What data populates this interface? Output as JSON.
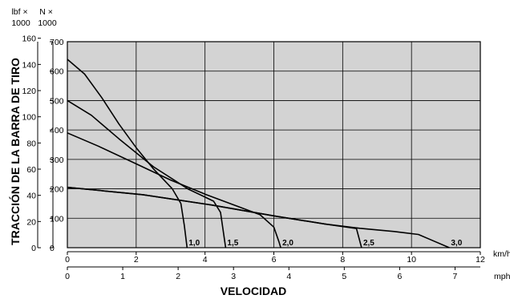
{
  "chart_data": {
    "type": "line",
    "title": "",
    "ylabel": "TRACCIÓN DE LA BARRA DE TIRO",
    "xlabel": "VELOCIDAD",
    "y_unit_lbf": "lbf ×\n1000",
    "y_unit_n": "N ×\n1000",
    "x_unit_kmh": "km/h",
    "x_unit_mph": "mph",
    "xlim_kmh": [
      0,
      12
    ],
    "ylim_kn": [
      0,
      700
    ],
    "grid": true,
    "x_ticks_kmh": [
      "0",
      "2",
      "4",
      "6",
      "8",
      "10",
      "12"
    ],
    "x_ticks_mph": [
      "0",
      "1",
      "2",
      "3",
      "4",
      "5",
      "6",
      "7"
    ],
    "y_ticks_kn": [
      "0",
      "100",
      "200",
      "300",
      "400",
      "500",
      "600",
      "700"
    ],
    "y_ticks_lbf": [
      "0",
      "20",
      "40",
      "60",
      "80",
      "100",
      "120",
      "140",
      "160"
    ],
    "series": [
      {
        "name": "1,0",
        "points": [
          [
            0,
            640
          ],
          [
            0.5,
            590
          ],
          [
            1.0,
            510
          ],
          [
            1.5,
            420
          ],
          [
            2.0,
            340
          ],
          [
            2.5,
            268
          ],
          [
            3.05,
            200
          ],
          [
            3.3,
            150
          ],
          [
            3.4,
            75
          ],
          [
            3.48,
            0
          ]
        ]
      },
      {
        "name": "1,5",
        "points": [
          [
            0,
            500
          ],
          [
            0.7,
            450
          ],
          [
            1.5,
            370
          ],
          [
            2.5,
            275
          ],
          [
            3.5,
            200
          ],
          [
            4.25,
            158
          ],
          [
            4.45,
            120
          ],
          [
            4.6,
            0
          ]
        ]
      },
      {
        "name": "2,0",
        "points": [
          [
            0,
            390
          ],
          [
            0.9,
            345
          ],
          [
            2.0,
            285
          ],
          [
            3.0,
            230
          ],
          [
            4.0,
            182
          ],
          [
            5.0,
            138
          ],
          [
            5.6,
            112
          ],
          [
            6.0,
            70
          ],
          [
            6.15,
            20
          ],
          [
            6.2,
            0
          ]
        ]
      },
      {
        "name": "2,5",
        "points": [
          [
            0,
            205
          ],
          [
            2.2,
            180
          ],
          [
            4.2,
            145
          ],
          [
            6.0,
            108
          ],
          [
            7.5,
            80
          ],
          [
            8.4,
            65
          ],
          [
            8.55,
            0
          ]
        ]
      },
      {
        "name": "3,0",
        "points": [
          [
            0,
            205
          ],
          [
            2.2,
            180
          ],
          [
            4.2,
            145
          ],
          [
            6.0,
            108
          ],
          [
            7.5,
            80
          ],
          [
            8.5,
            66
          ],
          [
            9.5,
            55
          ],
          [
            10.2,
            45
          ],
          [
            10.6,
            25
          ],
          [
            11.1,
            0
          ]
        ]
      }
    ]
  }
}
